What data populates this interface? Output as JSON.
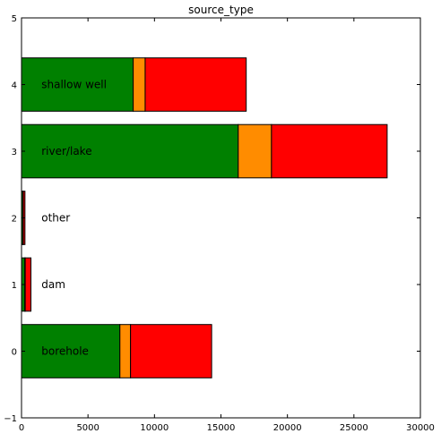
{
  "chart_data": {
    "type": "bar",
    "orientation": "horizontal",
    "stacked": true,
    "title": "source_type",
    "xlabel": "",
    "ylabel": "",
    "xlim": [
      0,
      30000
    ],
    "ylim": [
      -1,
      5
    ],
    "xticks": [
      0,
      5000,
      10000,
      15000,
      20000,
      25000,
      30000
    ],
    "yticks": [
      -1,
      0,
      1,
      2,
      3,
      4,
      5
    ],
    "grid": false,
    "legend": "none",
    "categories": [
      "borehole",
      "dam",
      "other",
      "river/lake",
      "shallow well"
    ],
    "positions": [
      0,
      1,
      2,
      3,
      4
    ],
    "series": [
      {
        "color": "#008000",
        "values": [
          7400,
          250,
          100,
          16300,
          8400
        ]
      },
      {
        "color": "#ff8c00",
        "values": [
          800,
          30,
          30,
          2500,
          900
        ]
      },
      {
        "color": "#ff0000",
        "values": [
          6100,
          430,
          130,
          8700,
          7600
        ]
      }
    ]
  }
}
